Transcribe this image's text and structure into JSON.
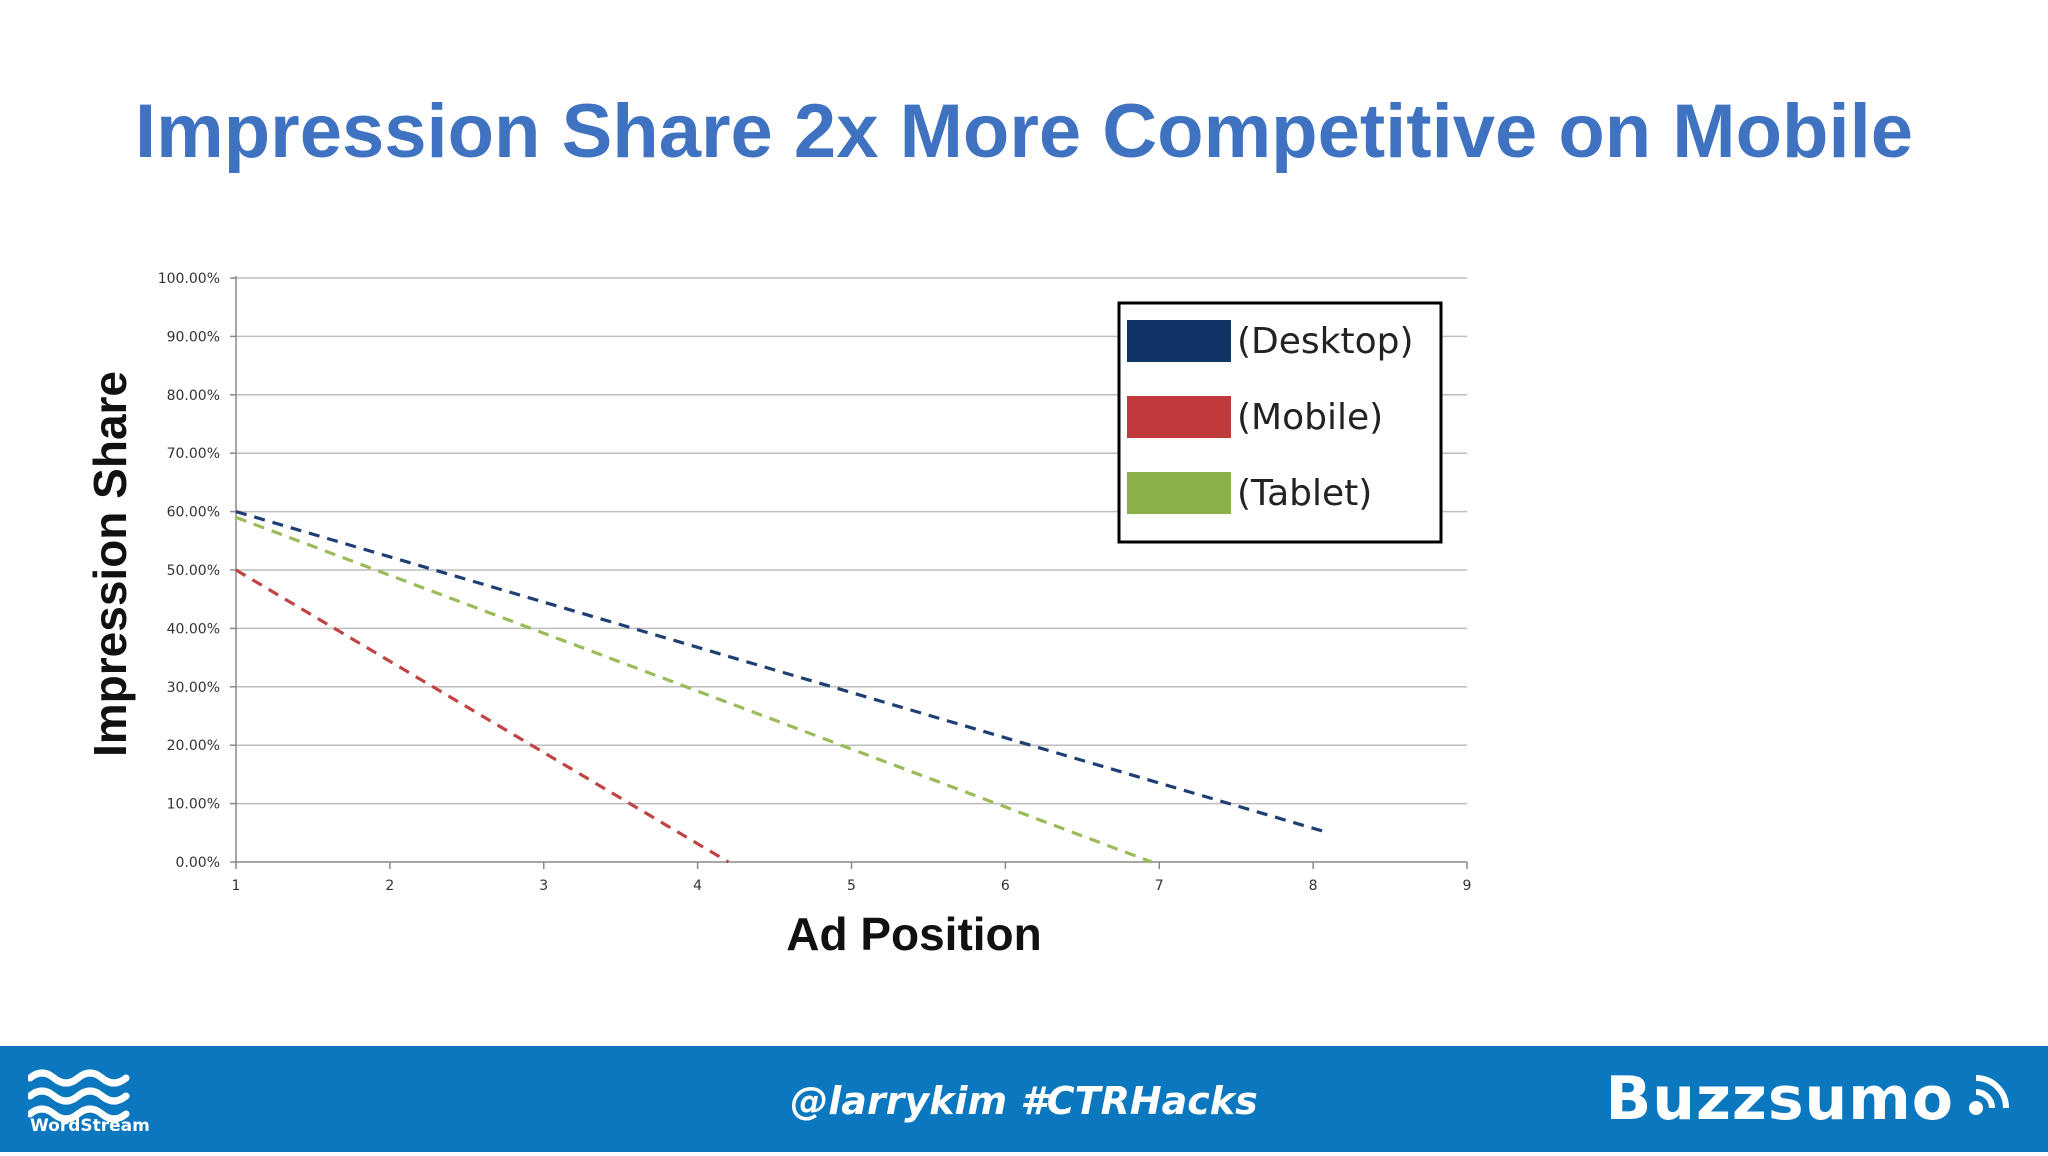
{
  "slide": {
    "title": "Impression Share 2x More Competitive on Mobile"
  },
  "chart_data": {
    "type": "line",
    "title": "",
    "xlabel": "Ad Position",
    "ylabel": "Impression Share",
    "xlim": [
      1,
      9
    ],
    "ylim": [
      0,
      100
    ],
    "x_ticks": [
      "1",
      "2",
      "3",
      "4",
      "5",
      "6",
      "7",
      "8",
      "9"
    ],
    "y_ticks": [
      "0.00%",
      "10.00%",
      "20.00%",
      "30.00%",
      "40.00%",
      "50.00%",
      "60.00%",
      "70.00%",
      "80.00%",
      "90.00%",
      "100.00%"
    ],
    "grid": true,
    "legend_position": "top-right",
    "line_style": "dashed",
    "series": [
      {
        "name": "(Desktop)",
        "color": "#1F3F73",
        "x": [
          1,
          8.1
        ],
        "y": [
          60,
          5
        ]
      },
      {
        "name": "(Mobile)",
        "color": "#C04444",
        "x": [
          1,
          4.2
        ],
        "y": [
          50,
          0
        ]
      },
      {
        "name": "(Tablet)",
        "color": "#9BBB59",
        "x": [
          1,
          6.95
        ],
        "y": [
          59,
          0
        ]
      }
    ]
  },
  "legend_colors": {
    "(Desktop)": "#0F3466",
    "(Mobile)": "#C0393B",
    "(Tablet)": "#8BB04A"
  },
  "footer": {
    "handle": "@larrykim #CTRHacks",
    "left_logo_text": "WordStream",
    "right_logo_text": "Buzzsumo",
    "background": "#0A77BE"
  }
}
